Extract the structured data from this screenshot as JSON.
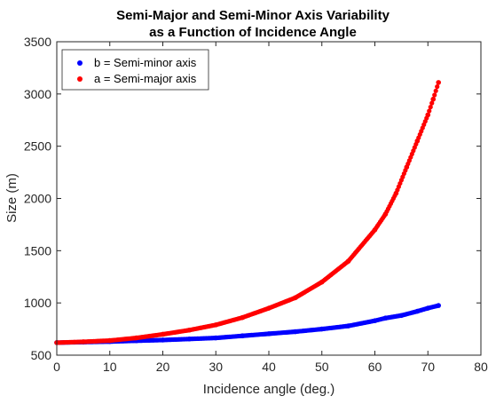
{
  "chart_data": {
    "type": "scatter",
    "title": [
      "Semi-Major and Semi-Minor Axis Variability",
      "as a Function of Incidence Angle"
    ],
    "xlabel": "Incidence angle (deg.)",
    "ylabel": "Size (m)",
    "xlim": [
      0,
      80
    ],
    "ylim": [
      500,
      3500
    ],
    "xticks": [
      0,
      10,
      20,
      30,
      40,
      50,
      60,
      70,
      80
    ],
    "yticks": [
      500,
      1000,
      1500,
      2000,
      2500,
      3000,
      3500
    ],
    "grid": false,
    "legend_position": "top-left",
    "series": [
      {
        "name": "b = Semi-minor axis",
        "color": "#0000ff",
        "x": [
          0,
          5,
          10,
          15,
          20,
          25,
          30,
          35,
          40,
          45,
          50,
          55,
          60,
          62,
          65,
          68,
          70,
          72
        ],
        "y": [
          620,
          625,
          630,
          638,
          645,
          655,
          665,
          685,
          705,
          725,
          750,
          780,
          830,
          855,
          880,
          920,
          950,
          975
        ]
      },
      {
        "name": "a = Semi-major axis",
        "color": "#ff0000",
        "x": [
          0,
          5,
          10,
          15,
          20,
          25,
          30,
          35,
          40,
          45,
          50,
          55,
          60,
          62,
          64,
          66,
          68,
          70,
          71,
          72
        ],
        "y": [
          620,
          628,
          640,
          665,
          700,
          740,
          790,
          860,
          950,
          1050,
          1200,
          1400,
          1700,
          1850,
          2050,
          2300,
          2550,
          2800,
          2950,
          3110
        ]
      }
    ]
  }
}
